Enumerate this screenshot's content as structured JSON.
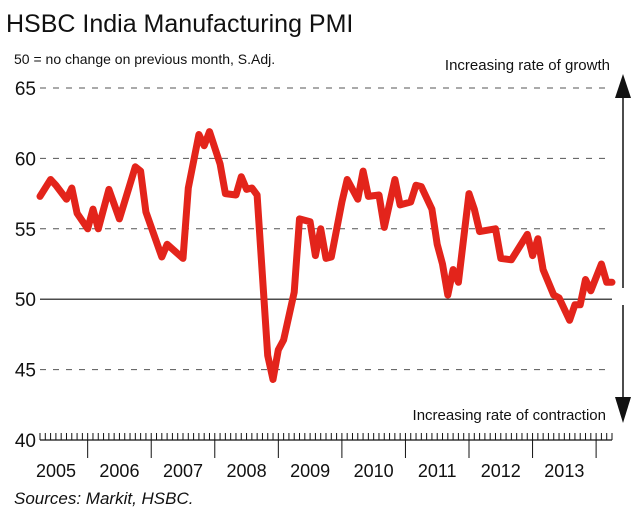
{
  "chart_data": {
    "type": "line",
    "title": "HSBC India Manufacturing PMI",
    "subtitle": "50 = no change on previous month, S.Adj.",
    "annotation_up": "Increasing rate of growth",
    "annotation_down": "Increasing rate of contraction",
    "source": "Sources: Markit, HSBC.",
    "xlabel": "",
    "ylabel": "",
    "xlim": [
      "2005-04",
      "2014-04"
    ],
    "ylim": [
      40,
      65
    ],
    "yticks": [
      40,
      45,
      50,
      55,
      60,
      65
    ],
    "xtick_labels": [
      "2005",
      "2006",
      "2007",
      "2008",
      "2009",
      "2010",
      "2011",
      "2012",
      "2013"
    ],
    "reference_line": 50,
    "grid": "dashed horizontal",
    "line_color": "#e3241b",
    "points": [
      [
        "2005-04",
        57.3
      ],
      [
        "2005-06",
        58.5
      ],
      [
        "2005-07",
        58.1
      ],
      [
        "2005-09",
        57.1
      ],
      [
        "2005-10",
        57.9
      ],
      [
        "2005-11",
        56.1
      ],
      [
        "2006-01",
        55.0
      ],
      [
        "2006-02",
        56.4
      ],
      [
        "2006-03",
        55.0
      ],
      [
        "2006-05",
        57.8
      ],
      [
        "2006-07",
        55.7
      ],
      [
        "2006-10",
        59.4
      ],
      [
        "2006-11",
        59.1
      ],
      [
        "2006-12",
        56.2
      ],
      [
        "2007-03",
        53.0
      ],
      [
        "2007-04",
        53.9
      ],
      [
        "2007-07",
        52.9
      ],
      [
        "2007-08",
        57.9
      ],
      [
        "2007-10",
        61.7
      ],
      [
        "2007-11",
        60.9
      ],
      [
        "2007-12",
        61.9
      ],
      [
        "2008-02",
        59.6
      ],
      [
        "2008-03",
        57.5
      ],
      [
        "2008-05",
        57.4
      ],
      [
        "2008-06",
        58.7
      ],
      [
        "2008-07",
        57.8
      ],
      [
        "2008-08",
        57.9
      ],
      [
        "2008-09",
        57.4
      ],
      [
        "2008-11",
        46.0
      ],
      [
        "2008-12",
        44.3
      ],
      [
        "2009-01",
        46.4
      ],
      [
        "2009-02",
        47.1
      ],
      [
        "2009-04",
        50.5
      ],
      [
        "2009-05",
        55.7
      ],
      [
        "2009-07",
        55.5
      ],
      [
        "2009-08",
        53.1
      ],
      [
        "2009-09",
        55.0
      ],
      [
        "2009-10",
        52.9
      ],
      [
        "2009-11",
        53.0
      ],
      [
        "2010-01",
        56.9
      ],
      [
        "2010-02",
        58.5
      ],
      [
        "2010-04",
        57.1
      ],
      [
        "2010-05",
        59.1
      ],
      [
        "2010-06",
        57.3
      ],
      [
        "2010-08",
        57.4
      ],
      [
        "2010-09",
        55.1
      ],
      [
        "2010-11",
        58.5
      ],
      [
        "2010-12",
        56.7
      ],
      [
        "2011-02",
        56.9
      ],
      [
        "2011-03",
        58.1
      ],
      [
        "2011-04",
        58.0
      ],
      [
        "2011-06",
        56.4
      ],
      [
        "2011-07",
        53.9
      ],
      [
        "2011-08",
        52.5
      ],
      [
        "2011-09",
        50.3
      ],
      [
        "2011-10",
        52.1
      ],
      [
        "2011-11",
        51.2
      ],
      [
        "2012-01",
        57.5
      ],
      [
        "2012-02",
        56.4
      ],
      [
        "2012-03",
        54.8
      ],
      [
        "2012-06",
        55.0
      ],
      [
        "2012-07",
        52.9
      ],
      [
        "2012-09",
        52.8
      ],
      [
        "2012-12",
        54.6
      ],
      [
        "2013-01",
        53.1
      ],
      [
        "2013-02",
        54.3
      ],
      [
        "2013-03",
        52.1
      ],
      [
        "2013-05",
        50.3
      ],
      [
        "2013-06",
        50.1
      ],
      [
        "2013-08",
        48.5
      ],
      [
        "2013-09",
        49.6
      ],
      [
        "2013-10",
        49.6
      ],
      [
        "2013-11",
        51.4
      ],
      [
        "2013-12",
        50.6
      ],
      [
        "2014-02",
        52.5
      ],
      [
        "2014-03",
        51.2
      ],
      [
        "2014-04",
        51.2
      ]
    ]
  }
}
